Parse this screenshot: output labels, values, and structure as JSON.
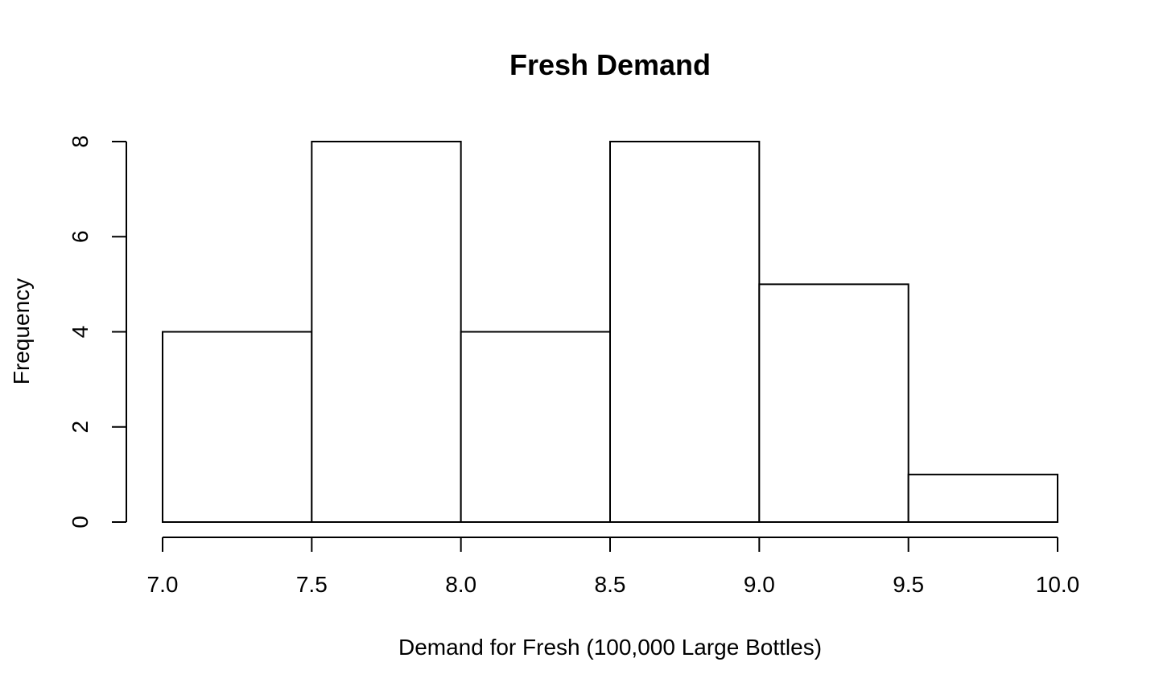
{
  "chart_data": {
    "type": "bar",
    "title": "Fresh Demand",
    "xlabel": "Demand for Fresh (100,000 Large Bottles)",
    "ylabel": "Frequency",
    "bins": [
      {
        "start": 7.0,
        "end": 7.5,
        "count": 4
      },
      {
        "start": 7.5,
        "end": 8.0,
        "count": 8
      },
      {
        "start": 8.0,
        "end": 8.5,
        "count": 4
      },
      {
        "start": 8.5,
        "end": 9.0,
        "count": 8
      },
      {
        "start": 9.0,
        "end": 9.5,
        "count": 5
      },
      {
        "start": 9.5,
        "end": 10.0,
        "count": 1
      }
    ],
    "xlim": [
      7.0,
      10.0
    ],
    "ylim": [
      0,
      8
    ],
    "x_ticks": [
      "7.0",
      "7.5",
      "8.0",
      "8.5",
      "9.0",
      "9.5",
      "10.0"
    ],
    "y_ticks": [
      "0",
      "2",
      "4",
      "6",
      "8"
    ],
    "grid": false,
    "bar_fill": "#ffffff",
    "bar_stroke": "#000000"
  }
}
